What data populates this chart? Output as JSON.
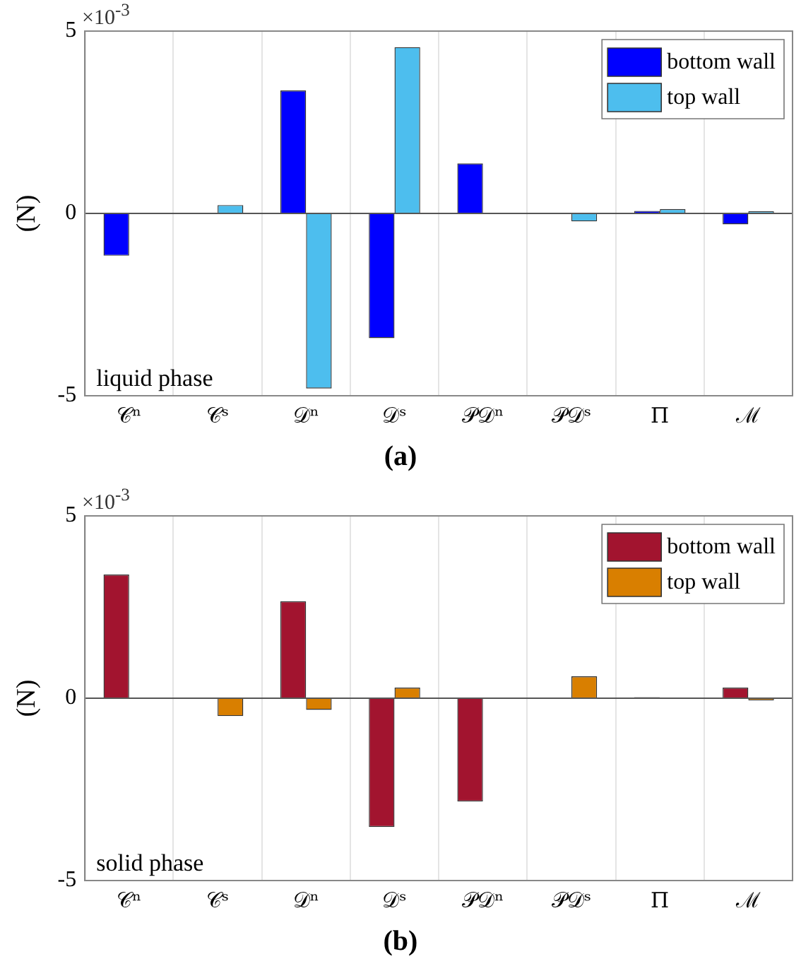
{
  "chart_data": [
    {
      "type": "bar",
      "categories": [
        "𝒞ⁿ",
        "𝒞ˢ",
        "𝒟ⁿ",
        "𝒟ˢ",
        "𝒫𝒟ⁿ",
        "𝒫𝒟ˢ",
        "Π",
        "ℳ"
      ],
      "ylabel": "(N)",
      "series": [
        {
          "name": "bottom wall",
          "color": "#0000ff",
          "values": [
            -1.16,
            0,
            3.37,
            -3.42,
            1.37,
            0,
            0.07,
            -0.3
          ]
        },
        {
          "name": "top wall",
          "color": "#4dbeee",
          "values": [
            0,
            0.23,
            -4.8,
            4.56,
            0,
            -0.22,
            0.12,
            0.06
          ]
        }
      ],
      "ylim": [
        -5,
        5
      ],
      "yticks": [
        -5,
        0,
        5
      ],
      "grid": "x",
      "legend": "top right",
      "annotations": [
        "liquid phase",
        "×10$^{-3}$",
        "(a)"
      ]
    },
    {
      "type": "bar",
      "categories": [
        "𝒞ⁿ",
        "𝒞ˢ",
        "𝒟ⁿ",
        "𝒟ˢ",
        "𝒫𝒟ⁿ",
        "𝒫𝒟ˢ",
        "Π",
        "ℳ"
      ],
      "ylabel": "(N)",
      "series": [
        {
          "name": "bottom wall",
          "color": "#a2142f",
          "values": [
            3.39,
            0,
            2.66,
            -3.53,
            -2.83,
            0,
            0.03,
            0.29
          ]
        },
        {
          "name": "top wall",
          "color": "#d97f00",
          "values": [
            0,
            -0.49,
            -0.32,
            0.29,
            0,
            0.6,
            0,
            -0.06
          ]
        }
      ],
      "ylim": [
        -5,
        5
      ],
      "yticks": [
        -5,
        0,
        5
      ],
      "grid": "x",
      "legend": "top right",
      "annotations": [
        "solid phase",
        "×10$^{-3}$",
        "(b)"
      ]
    }
  ]
}
